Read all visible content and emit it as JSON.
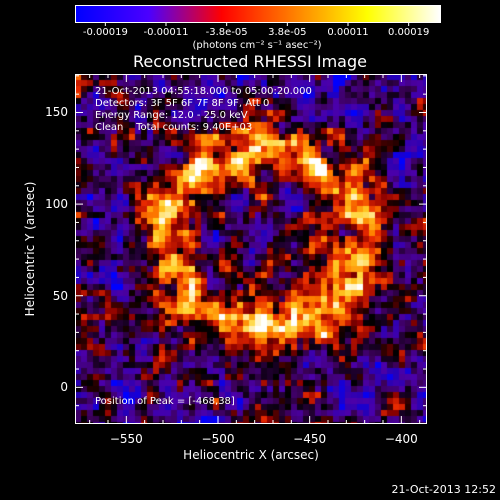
{
  "colorbar": {
    "tick_labels": [
      "-0.00019",
      "-0.00011",
      "-3.8e-05",
      "3.8e-05",
      "0.00011",
      "0.00019"
    ],
    "units": "(photons cm⁻² s⁻¹ asec⁻²)",
    "colors": [
      "#0000ff",
      "#4b00ff",
      "#ff0000",
      "#ff8000",
      "#ffff00",
      "#ffffff"
    ]
  },
  "chart_data": {
    "type": "heatmap",
    "title": "Reconstructed RHESSI Image",
    "xlabel": "Heliocentric X (arcsec)",
    "ylabel": "Heliocentric Y (arcsec)",
    "x_ticks": [
      -550,
      -500,
      -450,
      -400
    ],
    "y_ticks": [
      0,
      50,
      100,
      150
    ],
    "x_tick_labels": [
      "−550",
      "−500",
      "−450",
      "−400"
    ],
    "y_tick_labels": [
      "0",
      "50",
      "100",
      "150"
    ],
    "xlim": [
      -578,
      -386
    ],
    "ylim": [
      -20,
      171
    ],
    "value_range": [
      -0.00019,
      0.00019
    ],
    "peak": [
      -468,
      38
    ]
  },
  "info": {
    "time_range": "21-Oct-2013 04:55:18.000 to 05:00:20.000",
    "detectors": "Detectors: 3F 5F 6F 7F 8F 9F, Att 0",
    "energy": "Energy Range: 12.0 - 25.0 keV",
    "clean": "Clean    Total counts: 9.40E+03",
    "peak": "Position of Peak = [-468,38]"
  },
  "timestamp": "21-Oct-2013 12:52"
}
